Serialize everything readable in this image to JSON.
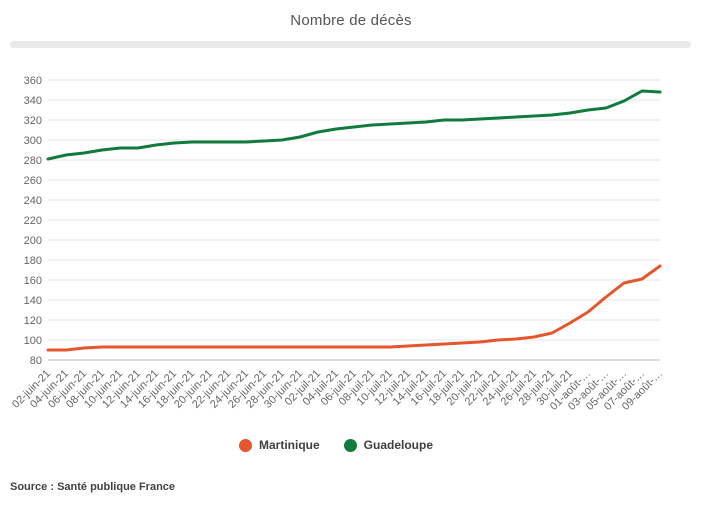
{
  "header": {
    "title": "Nombre de décès"
  },
  "source": {
    "text": "Source : Santé publique France"
  },
  "legend": {
    "items": [
      {
        "label": "Martinique",
        "color": "#E5562C"
      },
      {
        "label": "Guadeloupe",
        "color": "#117B3E"
      }
    ]
  },
  "colors": {
    "title": "#545454",
    "divider": "#e9e9e9",
    "gridline": "#e6e6e6",
    "baseline": "#bdbdbd",
    "axis_text": "#666666",
    "martinique": "#E5562C",
    "guadeloupe": "#117B3E"
  },
  "chart_data": {
    "type": "line",
    "title": "Nombre de décès",
    "xlabel": "",
    "ylabel": "",
    "grid": true,
    "legend_position": "bottom",
    "ylim": [
      80,
      360
    ],
    "y_ticks": [
      80,
      100,
      120,
      140,
      160,
      180,
      200,
      220,
      240,
      260,
      280,
      300,
      320,
      340,
      360
    ],
    "x_tick_labels": [
      "02-juin-21",
      "04-juin-21",
      "06-juin-21",
      "08-juin-21",
      "10-juin-21",
      "12-juin-21",
      "14-juin-21",
      "16-juin-21",
      "18-juin-21",
      "20-juin-21",
      "22-juin-21",
      "24-juin-21",
      "26-juin-21",
      "28-juin-21",
      "30-juin-21",
      "02-juil-21",
      "04-juil-21",
      "06-juil-21",
      "08-juil-21",
      "10-juil-21",
      "12-juil-21",
      "14-juil-21",
      "16-juil-21",
      "18-juil-21",
      "20-juil-21",
      "22-juil-21",
      "24-juil-21",
      "26-juil-21",
      "28-juil-21",
      "30-juil-21",
      "01-août-…",
      "03-août-…",
      "05-août-…",
      "07-août-…",
      "09-août-…"
    ],
    "series": [
      {
        "name": "Martinique",
        "color": "#E5562C",
        "values": [
          90,
          90,
          92,
          93,
          93,
          93,
          93,
          93,
          93,
          93,
          93,
          93,
          93,
          93,
          93,
          93,
          93,
          93,
          93,
          93,
          94,
          95,
          96,
          97,
          98,
          100,
          101,
          103,
          107,
          117,
          128,
          143,
          157,
          161,
          174
        ]
      },
      {
        "name": "Guadeloupe",
        "color": "#117B3E",
        "values": [
          281,
          285,
          287,
          290,
          292,
          292,
          295,
          297,
          298,
          298,
          298,
          298,
          299,
          300,
          303,
          308,
          311,
          313,
          315,
          316,
          317,
          318,
          320,
          320,
          321,
          322,
          323,
          324,
          325,
          327,
          330,
          332,
          339,
          349,
          348
        ]
      }
    ]
  }
}
